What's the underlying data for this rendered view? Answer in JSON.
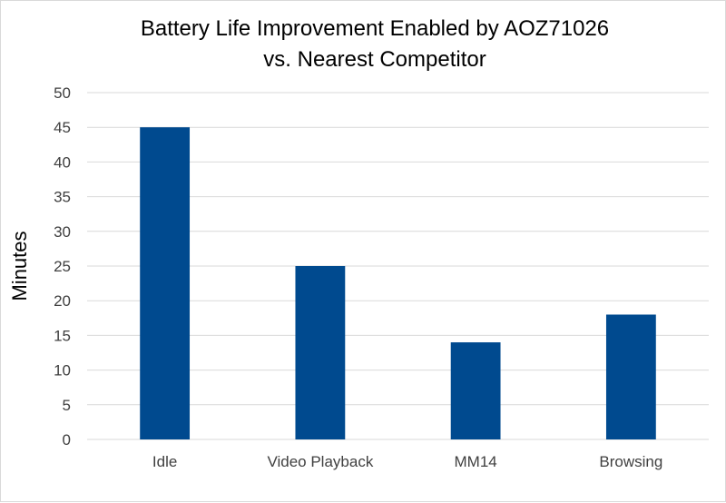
{
  "chart_data": {
    "type": "bar",
    "title_line1": "Battery Life Improvement Enabled by AOZ71026",
    "title_line2": "vs. Nearest Competitor",
    "xlabel": "",
    "ylabel": "Minutes",
    "categories": [
      "Idle",
      "Video Playback",
      "MM14",
      "Browsing"
    ],
    "values": [
      45,
      25,
      14,
      18
    ],
    "ylim": [
      0,
      50
    ],
    "yticks": [
      "0",
      "5",
      "10",
      "15",
      "20",
      "25",
      "30",
      "35",
      "40",
      "45",
      "50"
    ],
    "grid": true,
    "legend": "none",
    "bar_color": "#004a8f",
    "grid_color": "#d9d9d9"
  }
}
